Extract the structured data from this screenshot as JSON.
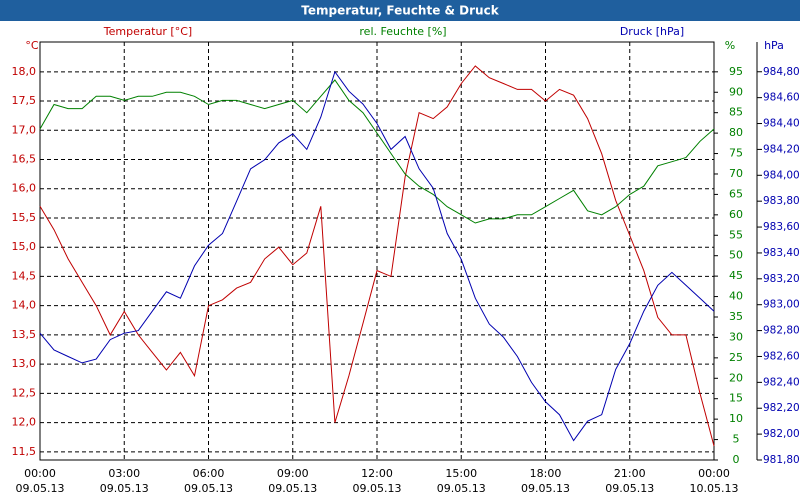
{
  "chart_data": {
    "type": "line",
    "title": "Temperatur, Feuchte & Druck",
    "y_label": "Temperatur [°C]",
    "y_unit": "°C",
    "y2_label": "rel. Feuchte [%]",
    "y2_unit": "%",
    "y3_label": "Druck [hPa]",
    "y3_unit": "hPa",
    "grid": true,
    "xlim": [
      0,
      24
    ],
    "xticks": [
      {
        "value": 0,
        "label": "00:00"
      },
      {
        "value": 3,
        "label": "03:00"
      },
      {
        "value": 6,
        "label": "06:00"
      },
      {
        "value": 9,
        "label": "09:00"
      },
      {
        "value": 12,
        "label": "12:00"
      },
      {
        "value": 15,
        "label": "15:00"
      },
      {
        "value": 18,
        "label": "18:00"
      },
      {
        "value": 21,
        "label": "21:00"
      },
      {
        "value": 24,
        "label": "00:00"
      }
    ],
    "xtick_dates": [
      "09.05.13",
      "09.05.13",
      "09.05.13",
      "09.05.13",
      "09.05.13",
      "09.05.13",
      "09.05.13",
      "09.05.13",
      "10.05.13"
    ],
    "ylim": [
      11.36,
      18.51
    ],
    "yticks": [
      {
        "value": 11.5,
        "label": "11,5"
      },
      {
        "value": 12,
        "label": "12,0"
      },
      {
        "value": 12.5,
        "label": "12,5"
      },
      {
        "value": 13,
        "label": "13,0"
      },
      {
        "value": 13.5,
        "label": "13,5"
      },
      {
        "value": 14,
        "label": "14,0"
      },
      {
        "value": 14.5,
        "label": "14,5"
      },
      {
        "value": 15,
        "label": "15,0"
      },
      {
        "value": 15.5,
        "label": "15,5"
      },
      {
        "value": 16,
        "label": "16,0"
      },
      {
        "value": 16.5,
        "label": "16,5"
      },
      {
        "value": 17,
        "label": "17,0"
      },
      {
        "value": 17.5,
        "label": "17,5"
      },
      {
        "value": 18,
        "label": "18,0"
      }
    ],
    "y2lim": [
      0,
      102.3
    ],
    "y2ticks": [
      0,
      5,
      10,
      15,
      20,
      25,
      30,
      35,
      40,
      45,
      50,
      55,
      60,
      65,
      70,
      75,
      80,
      85,
      90,
      95
    ],
    "y3lim": [
      981.8,
      985.03
    ],
    "y3ticks": [
      {
        "value": 981.8,
        "label": "981,80"
      },
      {
        "value": 982,
        "label": "982,00"
      },
      {
        "value": 982.2,
        "label": "982,20"
      },
      {
        "value": 982.4,
        "label": "982,40"
      },
      {
        "value": 982.6,
        "label": "982,60"
      },
      {
        "value": 982.8,
        "label": "982,80"
      },
      {
        "value": 983,
        "label": "983,00"
      },
      {
        "value": 983.2,
        "label": "983,20"
      },
      {
        "value": 983.4,
        "label": "983,40"
      },
      {
        "value": 983.6,
        "label": "983,60"
      },
      {
        "value": 983.8,
        "label": "983,80"
      },
      {
        "value": 984,
        "label": "984,00"
      },
      {
        "value": 984.2,
        "label": "984,20"
      },
      {
        "value": 984.4,
        "label": "984,40"
      },
      {
        "value": 984.6,
        "label": "984,60"
      },
      {
        "value": 984.8,
        "label": "984,80"
      }
    ],
    "x": [
      0,
      0.5,
      1,
      1.5,
      2,
      2.5,
      3,
      3.5,
      4,
      4.5,
      5,
      5.5,
      6,
      6.5,
      7,
      7.5,
      8,
      8.5,
      9,
      9.5,
      10,
      10.5,
      11,
      11.5,
      12,
      12.5,
      13,
      13.5,
      14,
      14.5,
      15,
      15.5,
      16,
      16.5,
      17,
      17.5,
      18,
      18.5,
      19,
      19.5,
      20,
      20.5,
      21,
      21.5,
      22,
      22.5,
      23,
      23.5,
      24
    ],
    "series": [
      {
        "name": "Temperatur",
        "color": "#c00000",
        "axis": "y",
        "values": [
          15.7,
          15.3,
          14.8,
          14.4,
          14.0,
          13.5,
          13.9,
          13.5,
          13.2,
          12.9,
          13.2,
          12.8,
          14.0,
          14.1,
          14.3,
          14.4,
          14.8,
          15.0,
          14.7,
          14.9,
          15.7,
          12.0,
          12.8,
          13.7,
          14.6,
          14.5,
          16.2,
          17.3,
          17.2,
          17.4,
          17.8,
          18.1,
          17.9,
          17.8,
          17.7,
          17.7,
          17.5,
          17.7,
          17.6,
          17.2,
          16.6,
          15.8,
          15.2,
          14.6,
          13.8,
          13.5,
          13.5,
          12.5,
          11.6
        ]
      },
      {
        "name": "rel. Feuchte",
        "color": "#008000",
        "axis": "y2",
        "values": [
          81,
          87,
          86,
          86,
          89,
          89,
          88,
          89,
          89,
          90,
          90,
          89,
          87,
          88,
          88,
          87,
          86,
          87,
          88,
          85,
          89,
          93,
          88,
          85,
          80,
          75,
          70,
          67,
          65,
          62,
          60,
          58,
          59,
          59,
          60,
          60,
          62,
          64,
          66,
          61,
          60,
          62,
          65,
          67,
          72,
          73,
          74,
          78,
          81
        ]
      },
      {
        "name": "Druck",
        "color": "#0000b0",
        "axis": "y3",
        "values": [
          982.78,
          982.65,
          982.6,
          982.55,
          982.58,
          982.73,
          982.78,
          982.8,
          982.95,
          983.1,
          983.05,
          983.3,
          983.46,
          983.55,
          983.8,
          984.05,
          984.12,
          984.25,
          984.32,
          984.2,
          984.45,
          984.8,
          984.65,
          984.55,
          984.4,
          984.2,
          984.3,
          984.05,
          983.9,
          983.55,
          983.35,
          983.05,
          982.85,
          982.75,
          982.6,
          982.4,
          982.25,
          982.15,
          981.95,
          982.1,
          982.15,
          982.5,
          982.7,
          982.95,
          983.15,
          983.25,
          983.15,
          983.05,
          982.95
        ]
      }
    ]
  }
}
